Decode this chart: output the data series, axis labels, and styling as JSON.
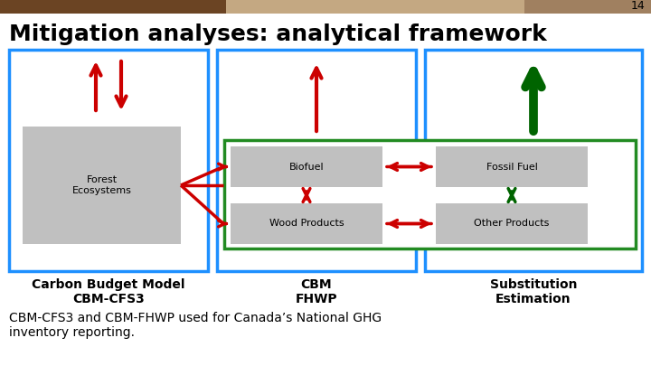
{
  "title": "Mitigation analyses: analytical framework",
  "slide_number": "14",
  "background_color": "#ffffff",
  "title_color": "#000000",
  "title_fontsize": 18,
  "box1_label": "Carbon Budget Model\nCBM-CFS3",
  "box2_label": "CBM\nFHWP",
  "box3_label": "Substitution\nEstimation",
  "forest_label": "Forest\nEcosystems",
  "biofuel_label": "Biofuel",
  "wood_label": "Wood Products",
  "fossil_label": "Fossil Fuel",
  "other_label": "Other Products",
  "footer_text": "CBM-CFS3 and CBM-FHWP used for Canada’s National GHG\ninventory reporting.",
  "box_border_color": "#1E90FF",
  "inner_box_border_color": "#228B22",
  "gray_box_color": "#C0C0C0",
  "red_arrow_color": "#CC0000",
  "green_arrow_color": "#006400",
  "label_fontsize": 8,
  "footer_fontsize": 10,
  "bold_label_fontsize": 10,
  "header_left_color": "#6B4423",
  "header_mid_color": "#C4A882",
  "header_right_color": "#A08060"
}
